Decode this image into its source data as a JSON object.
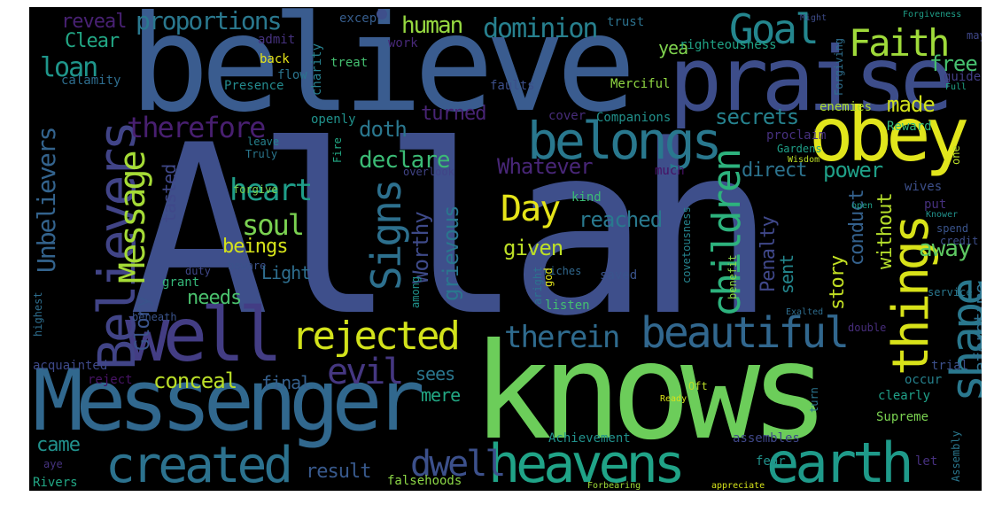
{
  "words": [
    {
      "text": "Allah",
      "color": "#3e4f8b"
    },
    {
      "text": "believe",
      "color": "#3a5c8f"
    },
    {
      "text": "knows",
      "color": "#6ccd5a"
    },
    {
      "text": "Messenger",
      "color": "#31688e"
    },
    {
      "text": "praise",
      "color": "#3d4d8a"
    },
    {
      "text": "obey",
      "color": "#e1e51c"
    },
    {
      "text": "well",
      "color": "#433d84"
    },
    {
      "text": "heavens",
      "color": "#20a387"
    },
    {
      "text": "earth",
      "color": "#1f9a8a"
    },
    {
      "text": "belongs",
      "color": "#29788e"
    },
    {
      "text": "created",
      "color": "#2c728e"
    },
    {
      "text": "Believers",
      "color": "#414487"
    },
    {
      "text": "things",
      "color": "#d8e219"
    },
    {
      "text": "shape",
      "color": "#2a788e"
    },
    {
      "text": "beautiful",
      "color": "#31678e"
    },
    {
      "text": "rejected",
      "color": "#d2e21b"
    },
    {
      "text": "Goal",
      "color": "#24868e"
    },
    {
      "text": "Faith",
      "color": "#9fda3a"
    },
    {
      "text": "Message",
      "color": "#a5db36"
    },
    {
      "text": "Signs",
      "color": "#2d708e"
    },
    {
      "text": "therein",
      "color": "#2f6b8e"
    },
    {
      "text": "evil",
      "color": "#453781"
    },
    {
      "text": "children",
      "color": "#2db27d"
    },
    {
      "text": "Day",
      "color": "#e5e419"
    },
    {
      "text": "dwell",
      "color": "#3c508b"
    },
    {
      "text": "heart",
      "color": "#1f9e89"
    },
    {
      "text": "soul",
      "color": "#7ad151"
    },
    {
      "text": "Unbelievers",
      "color": "#33638d"
    },
    {
      "text": "therefore",
      "color": "#481f70"
    },
    {
      "text": "proportions",
      "color": "#2a788e"
    },
    {
      "text": "dominion",
      "color": "#27808e"
    },
    {
      "text": "human",
      "color": "#95d840"
    },
    {
      "text": "loan",
      "color": "#1f968b"
    },
    {
      "text": "free",
      "color": "#46c06f"
    },
    {
      "text": "made",
      "color": "#d2e21b"
    },
    {
      "text": "secrets",
      "color": "#26828e"
    },
    {
      "text": "doth",
      "color": "#2a778e"
    },
    {
      "text": "turned",
      "color": "#482475"
    },
    {
      "text": "declare",
      "color": "#3bbb75"
    },
    {
      "text": "Whatever",
      "color": "#482677"
    },
    {
      "text": "direct",
      "color": "#2c738e"
    },
    {
      "text": "power",
      "color": "#1fa088"
    },
    {
      "text": "reached",
      "color": "#29798e"
    },
    {
      "text": "Worthy",
      "color": "#3e4a89"
    },
    {
      "text": "grievous",
      "color": "#2a768e"
    },
    {
      "text": "given",
      "color": "#bddf26"
    },
    {
      "text": "Penalty",
      "color": "#3f4788"
    },
    {
      "text": "conduct",
      "color": "#34618d"
    },
    {
      "text": "without",
      "color": "#b5de2b"
    },
    {
      "text": "away",
      "color": "#5ec962"
    },
    {
      "text": "story",
      "color": "#c2df23"
    },
    {
      "text": "Glory",
      "color": "#3a538b"
    },
    {
      "text": "beings",
      "color": "#d5e21a"
    },
    {
      "text": "needs",
      "color": "#4ac16d"
    },
    {
      "text": "Light",
      "color": "#2e6e8e"
    },
    {
      "text": "tasted",
      "color": "#3f4889"
    },
    {
      "text": "sent",
      "color": "#24878e"
    },
    {
      "text": "conceal",
      "color": "#bade28"
    },
    {
      "text": "final",
      "color": "#35608d"
    },
    {
      "text": "mere",
      "color": "#22a884"
    },
    {
      "text": "sees",
      "color": "#2a768e"
    },
    {
      "text": "result",
      "color": "#38598c"
    },
    {
      "text": "came",
      "color": "#21918c"
    },
    {
      "text": "reveal",
      "color": "#482173"
    },
    {
      "text": "Clear",
      "color": "#22a785"
    },
    {
      "text": "aforetime",
      "color": "#2d708e"
    },
    {
      "text": "yea",
      "color": "#7fd34e"
    },
    {
      "text": "Companions",
      "color": "#21918c"
    },
    {
      "text": "cover",
      "color": "#472c7a"
    },
    {
      "text": "openly",
      "color": "#20928c"
    },
    {
      "text": "enemies",
      "color": "#addc30"
    },
    {
      "text": "Reward",
      "color": "#32b67a"
    },
    {
      "text": "proclaim",
      "color": "#46307e"
    },
    {
      "text": "Merciful",
      "color": "#90d743"
    },
    {
      "text": "faults",
      "color": "#3c4f8a"
    },
    {
      "text": "flow",
      "color": "#2b748e"
    },
    {
      "text": "treat",
      "color": "#44bf70"
    },
    {
      "text": "back",
      "color": "#e5e419"
    },
    {
      "text": "charity",
      "color": "#27808e"
    },
    {
      "text": "Presence",
      "color": "#238a8d"
    },
    {
      "text": "calamity",
      "color": "#2e6d8e"
    },
    {
      "text": "admit",
      "color": "#46327e"
    },
    {
      "text": "work",
      "color": "#482979"
    },
    {
      "text": "except",
      "color": "#365d8d"
    },
    {
      "text": "trust",
      "color": "#2c728e"
    },
    {
      "text": "righteousness",
      "color": "#20a386"
    },
    {
      "text": "Might",
      "color": "#3e4c8a"
    },
    {
      "text": "Forgiveness",
      "color": "#1f9f88"
    },
    {
      "text": "may",
      "color": "#3f4788"
    },
    {
      "text": "Forgiving",
      "color": "#2e6f8e"
    },
    {
      "text": "guides",
      "color": "#433e85"
    },
    {
      "text": "Full",
      "color": "#20a486"
    },
    {
      "text": "Fire",
      "color": "#22a884"
    },
    {
      "text": "leave",
      "color": "#26828e"
    },
    {
      "text": "Truly",
      "color": "#2a778e"
    },
    {
      "text": "forgive",
      "color": "#7ad151"
    },
    {
      "text": "overlook",
      "color": "#414487"
    },
    {
      "text": "much",
      "color": "#471063"
    },
    {
      "text": "kind",
      "color": "#3bbb75"
    },
    {
      "text": "Gardens",
      "color": "#1fa088"
    },
    {
      "text": "Wisdom",
      "color": "#bddf26"
    },
    {
      "text": "beware",
      "color": "#3b528b"
    },
    {
      "text": "riches",
      "color": "#31688e"
    },
    {
      "text": "covetousness",
      "color": "#25848e"
    },
    {
      "text": "benefit",
      "color": "#8bd646"
    },
    {
      "text": "god",
      "color": "#e1e51c"
    },
    {
      "text": "aright",
      "color": "#2c728e"
    },
    {
      "text": "among",
      "color": "#20928c"
    },
    {
      "text": "saved",
      "color": "#3a548c"
    },
    {
      "text": "grant",
      "color": "#35b779"
    },
    {
      "text": "duty",
      "color": "#3f4788"
    },
    {
      "text": "beneath",
      "color": "#3a548c"
    },
    {
      "text": "highest",
      "color": "#2e6e8e"
    },
    {
      "text": "acquainted",
      "color": "#3e4989"
    },
    {
      "text": "reject",
      "color": "#471365"
    },
    {
      "text": "aye",
      "color": "#46337f"
    },
    {
      "text": "Rivers",
      "color": "#22a785"
    },
    {
      "text": "falsehoods",
      "color": "#8bd646"
    },
    {
      "text": "Forbearing",
      "color": "#a0da39"
    },
    {
      "text": "appreciate",
      "color": "#d5e21a"
    },
    {
      "text": "Achievement",
      "color": "#21918c"
    },
    {
      "text": "Ready",
      "color": "#d8e219"
    },
    {
      "text": "Oft",
      "color": "#bade28"
    },
    {
      "text": "let",
      "color": "#46307e"
    },
    {
      "text": "fear",
      "color": "#20928c"
    },
    {
      "text": "assembles",
      "color": "#3f4788"
    },
    {
      "text": "Assembly",
      "color": "#2a778e"
    },
    {
      "text": "Supreme",
      "color": "#7ad151"
    },
    {
      "text": "clearly",
      "color": "#1fa088"
    },
    {
      "text": "occur",
      "color": "#26828e"
    },
    {
      "text": "trial",
      "color": "#3c508b"
    },
    {
      "text": "turn",
      "color": "#2b748e"
    },
    {
      "text": "listen",
      "color": "#44bf70"
    },
    {
      "text": "double",
      "color": "#472d7b"
    },
    {
      "text": "Exalted",
      "color": "#2e6d8e"
    },
    {
      "text": "service",
      "color": "#2a778e"
    },
    {
      "text": "credit",
      "color": "#3d4e8a"
    },
    {
      "text": "spend",
      "color": "#3a548c"
    },
    {
      "text": "Knower",
      "color": "#21918c"
    },
    {
      "text": "put",
      "color": "#46307e"
    },
    {
      "text": "wives",
      "color": "#3c4f8a"
    },
    {
      "text": "open",
      "color": "#1f9e89"
    },
    {
      "text": "one",
      "color": "#bade28"
    }
  ]
}
